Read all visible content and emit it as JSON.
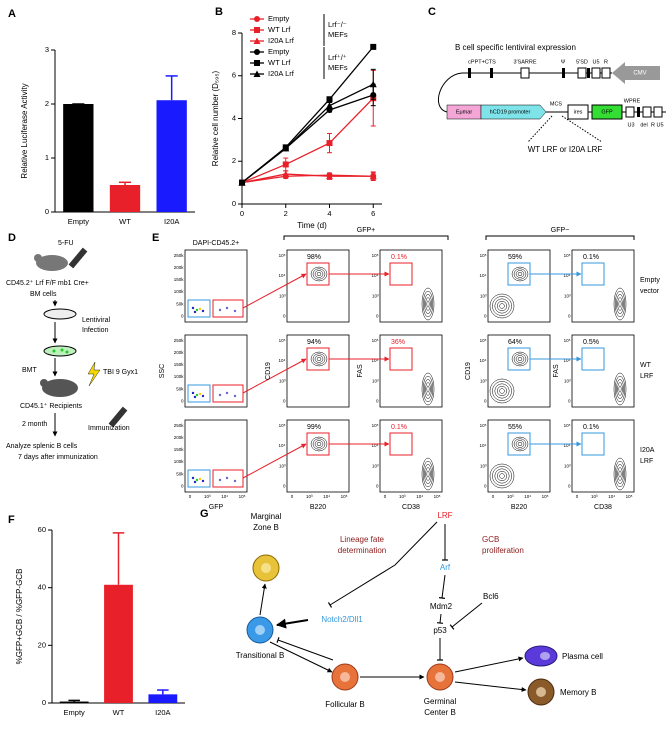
{
  "chart_data": [
    {
      "type": "bar",
      "label": "A",
      "ylabel": "Relative Luciferase Activity",
      "categories": [
        "Empty",
        "WT",
        "I20A"
      ],
      "values": [
        2,
        0.5,
        2.07
      ],
      "errors": [
        0,
        0.05,
        0.45
      ],
      "colors": [
        "#000000",
        "#e8202a",
        "#1a1aff"
      ],
      "ylim": [
        0,
        3
      ],
      "yticks": [
        0,
        1,
        2,
        3
      ]
    },
    {
      "type": "line",
      "label": "B",
      "xlabel": "Time (d)",
      "ylabel": "Relative cell number (D₅₉₅)",
      "x": [
        0,
        2,
        4,
        6
      ],
      "xlim": [
        0,
        6.4
      ],
      "xticks": [
        0,
        2,
        4,
        6
      ],
      "ylim": [
        0,
        8
      ],
      "yticks": [
        0,
        2,
        4,
        6,
        8
      ],
      "legend_groups": [
        [
          "Lrf⁻/⁻",
          "MEFs"
        ],
        [
          "Lrf⁺/⁺",
          "MEFs"
        ]
      ],
      "series": [
        {
          "name": "Empty",
          "color": "#e8202a",
          "marker": "circle",
          "values": [
            1,
            1.3,
            1.35,
            1.3
          ],
          "errors": [
            0,
            0.1,
            0.1,
            0.15
          ]
        },
        {
          "name": "WT Lrf",
          "color": "#e8202a",
          "marker": "square",
          "values": [
            1,
            1.85,
            2.85,
            4.95
          ],
          "errors": [
            0,
            0.3,
            0.45,
            1.3
          ]
        },
        {
          "name": "I20A Lrf",
          "color": "#e8202a",
          "marker": "triangle",
          "values": [
            1,
            1.4,
            1.3,
            1.3
          ],
          "errors": [
            0,
            0.15,
            0.15,
            0.2
          ]
        },
        {
          "name": "Empty",
          "color": "#000000",
          "marker": "circle",
          "values": [
            1,
            2.6,
            4.4,
            5.1
          ],
          "errors": [
            0,
            0.1,
            0.1,
            0.5
          ]
        },
        {
          "name": "WT Lrf",
          "color": "#000000",
          "marker": "square",
          "values": [
            1,
            2.65,
            4.9,
            7.35
          ],
          "errors": [
            0,
            0.1,
            0.1,
            0.1
          ]
        },
        {
          "name": "I20A Lrf",
          "color": "#000000",
          "marker": "triangle",
          "values": [
            1,
            2.6,
            4.6,
            5.6
          ],
          "errors": [
            0,
            0.1,
            0.15,
            0.7
          ]
        }
      ]
    },
    {
      "type": "bar",
      "label": "F",
      "ylabel": "%GFP+GCB / %GFP-GCB",
      "categories": [
        "Empty",
        "WT",
        "I20A"
      ],
      "values": [
        0.5,
        41,
        3
      ],
      "errors": [
        0.4,
        18,
        1.5
      ],
      "colors": [
        "#000000",
        "#e8202a",
        "#1a1aff"
      ],
      "ylim": [
        0,
        60
      ],
      "yticks": [
        0,
        20,
        40,
        60
      ]
    }
  ],
  "panel_c": {
    "label": "C",
    "title": "B cell specific lentiviral expression",
    "top_elements": [
      "cPPT+CTS",
      "3'SARRE",
      "Ψ",
      "5'SD",
      "U5",
      "R"
    ],
    "promoter": "CMV",
    "bottom_elements": [
      "Eμmar",
      "hCD19 promoter",
      "MCS",
      "ires",
      "GFP",
      "WPRE"
    ],
    "ltr": [
      "U3",
      "del",
      "R",
      "U5"
    ],
    "insert": "WT LRF or I20A LRF"
  },
  "panel_d": {
    "label": "D",
    "drug": "5-FU",
    "donor": "CD45.2⁺ Lrf F/F mb1 Cre+",
    "bm": "BM cells",
    "infection": [
      "Lentiviral",
      "Infection"
    ],
    "bmt": "BMT",
    "irradiation": "TBI 9 Gyx1",
    "recipients": "CD45.1⁺ Recipients",
    "time": "2 month",
    "immunization": "Immunization",
    "analysis": [
      "Analyze splenic B cells",
      "7 days after immunization"
    ]
  },
  "panel_e": {
    "label": "E",
    "groups": [
      "GFP+",
      "GFP−"
    ],
    "gate_label": "DAPI-CD45.2+",
    "axes": {
      "ssc": "SSC",
      "gfp": "GFP",
      "cd19": "CD19",
      "b220": "B220",
      "fas": "FAS",
      "cd38": "CD38"
    },
    "ssc_ticks": [
      "0",
      "50k",
      "100k",
      "150k",
      "200k",
      "250k"
    ],
    "log_ticks": [
      "0",
      "10³",
      "10⁴",
      "10⁵"
    ],
    "rows": [
      {
        "name": [
          "Empty",
          "vector"
        ],
        "gfp_pos_cd19": "98%",
        "gfp_pos_fas": "0.1%",
        "gfp_neg_cd19": "59%",
        "gfp_neg_fas": "0.1%"
      },
      {
        "name": [
          "WT",
          "LRF"
        ],
        "gfp_pos_cd19": "94%",
        "gfp_pos_fas": "36%",
        "gfp_neg_cd19": "64%",
        "gfp_neg_fas": "0.5%"
      },
      {
        "name": [
          "I20A",
          "LRF"
        ],
        "gfp_pos_cd19": "99%",
        "gfp_pos_fas": "0.1%",
        "gfp_neg_cd19": "55%",
        "gfp_neg_fas": "0.1%"
      }
    ]
  },
  "panel_g": {
    "label": "G",
    "nodes": [
      [
        "Marginal",
        "Zone B"
      ],
      [
        "Transitional B"
      ],
      [
        "Follicular B"
      ],
      [
        "Germinal",
        "Center B"
      ],
      [
        "Plasma cell"
      ],
      [
        "Memory B"
      ]
    ],
    "lineage_fate": [
      "Lineage fate",
      "determination"
    ],
    "lrf": "LRF",
    "gcb_proliferation": [
      "GCB",
      "proliferation"
    ],
    "arf": "Arf",
    "mdm2": "Mdm2",
    "bcl6": "Bcl6",
    "p53": "p53",
    "notch": "Notch2/Dll1"
  }
}
